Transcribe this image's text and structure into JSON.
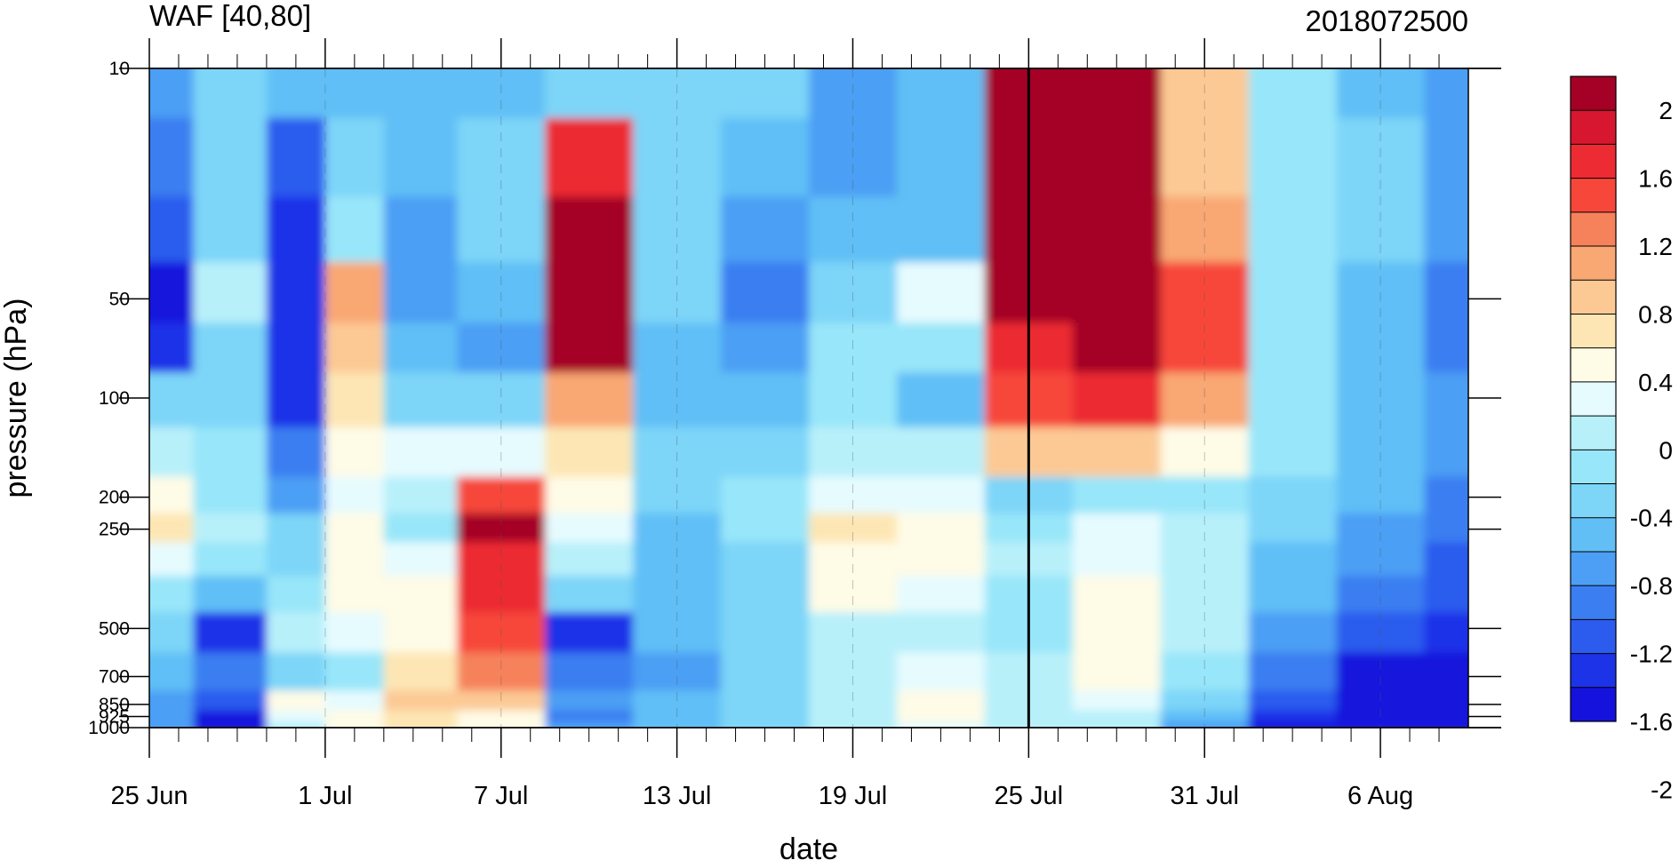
{
  "chart_data": {
    "type": "heatmap",
    "title_left": "WAF [40,80]",
    "title_right": "2018072500",
    "xlabel": "date",
    "ylabel": "pressure (hPa)",
    "x_tick_labels": [
      "25 Jun",
      "1 Jul",
      "7 Jul",
      "13 Jul",
      "19 Jul",
      "25 Jul",
      "31 Jul",
      "6 Aug"
    ],
    "x_range": [
      "2018-06-25",
      "2018-08-09"
    ],
    "analysis_date_marker": "2018-07-25",
    "y_axis": {
      "scale": "log",
      "inverted": true,
      "range": [
        10,
        1000
      ],
      "tick_values": [
        10,
        50,
        100,
        200,
        250,
        500,
        700,
        850,
        925,
        1000
      ]
    },
    "y_tick_labels": [
      "10",
      "50",
      "100",
      "200",
      "250",
      "500",
      "700",
      "850",
      "925",
      "1000"
    ],
    "colorbar": {
      "labels": [
        "2",
        "1.6",
        "1.2",
        "0.8",
        "0.4",
        "0",
        "-0.4",
        "-0.8",
        "-1.2",
        "-1.6",
        "-2"
      ],
      "colors": [
        "#a50026",
        "#d7172f",
        "#ec2b33",
        "#f7473a",
        "#f6825b",
        "#f9a773",
        "#fcc994",
        "#fde6b4",
        "#fefbe6",
        "#e6fbfe",
        "#b8f0fa",
        "#98e6f9",
        "#7dd5f8",
        "#61bff6",
        "#4c9ff4",
        "#3a7ef1",
        "#2c5cee",
        "#1d33e8",
        "#1612dd"
      ]
    },
    "values": {
      "dates": [
        "2018-06-25",
        "2018-06-28",
        "2018-06-30",
        "2018-07-02",
        "2018-07-04",
        "2018-07-07",
        "2018-07-10",
        "2018-07-13",
        "2018-07-16",
        "2018-07-19",
        "2018-07-22",
        "2018-07-25",
        "2018-07-28",
        "2018-07-31",
        "2018-08-03",
        "2018-08-06",
        "2018-08-09"
      ],
      "pressure_levels": [
        10,
        20,
        30,
        50,
        70,
        100,
        150,
        200,
        250,
        300,
        400,
        500,
        700,
        850,
        925,
        1000
      ],
      "waf": [
        [
          -0.6,
          -0.3,
          -0.4,
          -0.5,
          -0.5,
          -0.4,
          -0.3,
          -0.2,
          -0.3,
          -0.6,
          -0.4,
          2.6,
          2.6,
          1.0,
          0.0,
          -0.4,
          -0.6
        ],
        [
          -0.8,
          -0.3,
          -1.0,
          -0.3,
          -0.4,
          -0.3,
          1.8,
          -0.3,
          -0.5,
          -0.6,
          -0.4,
          2.6,
          2.6,
          1.0,
          0.0,
          -0.3,
          -0.6
        ],
        [
          -1.0,
          -0.2,
          -1.2,
          0.0,
          -0.6,
          -0.3,
          2.0,
          -0.3,
          -0.6,
          -0.5,
          -0.4,
          2.5,
          2.6,
          1.2,
          0.0,
          -0.3,
          -0.7
        ],
        [
          -1.4,
          0.1,
          -1.3,
          1.2,
          -0.7,
          -0.5,
          2.4,
          -0.3,
          -0.8,
          -0.3,
          0.4,
          2.0,
          2.6,
          1.5,
          0.0,
          -0.4,
          -0.8
        ],
        [
          -1.2,
          -0.3,
          -1.3,
          0.9,
          -0.5,
          -0.6,
          2.2,
          -0.4,
          -0.6,
          0.0,
          0.0,
          1.8,
          2.4,
          1.6,
          0.0,
          -0.5,
          -0.8
        ],
        [
          -0.3,
          -0.3,
          -1.3,
          0.7,
          -0.3,
          -0.3,
          1.2,
          -0.4,
          -0.4,
          0.0,
          -0.4,
          1.5,
          1.7,
          1.2,
          0.0,
          -0.4,
          -0.7
        ],
        [
          0.2,
          0.0,
          -0.8,
          0.6,
          0.3,
          0.4,
          0.8,
          -0.3,
          -0.2,
          0.2,
          0.2,
          1.0,
          1.0,
          0.6,
          0.0,
          -0.4,
          -0.7
        ],
        [
          0.6,
          0.0,
          -0.6,
          0.3,
          0.2,
          1.5,
          0.5,
          -0.3,
          -0.1,
          0.4,
          0.3,
          -0.2,
          -0.1,
          0.0,
          -0.2,
          -0.5,
          -0.8
        ],
        [
          0.7,
          0.2,
          -0.3,
          0.5,
          0.0,
          2.0,
          0.4,
          -0.4,
          0.0,
          0.7,
          0.5,
          -0.1,
          0.3,
          0.1,
          -0.3,
          -0.6,
          -0.9
        ],
        [
          0.4,
          0.0,
          -0.2,
          0.6,
          0.3,
          1.8,
          0.2,
          -0.5,
          -0.2,
          0.6,
          0.5,
          0.1,
          0.4,
          0.1,
          -0.4,
          -0.7,
          -1.0
        ],
        [
          0.0,
          -0.5,
          0.0,
          0.6,
          0.5,
          1.7,
          -0.3,
          -0.5,
          -0.3,
          0.6,
          0.3,
          0.0,
          0.6,
          0.1,
          -0.5,
          -0.9,
          -1.1
        ],
        [
          -0.2,
          -1.3,
          0.2,
          0.4,
          0.6,
          1.5,
          -1.2,
          -0.5,
          -0.3,
          0.2,
          0.2,
          0.0,
          0.6,
          0.1,
          -0.6,
          -1.0,
          -1.2
        ],
        [
          -0.4,
          -0.8,
          -0.2,
          0.0,
          0.8,
          1.4,
          -0.9,
          -0.6,
          -0.2,
          0.2,
          0.3,
          0.1,
          0.5,
          0.0,
          -0.8,
          -1.4,
          -1.5
        ],
        [
          -0.6,
          -1.0,
          0.5,
          0.4,
          0.9,
          1.0,
          -0.6,
          -0.5,
          -0.2,
          0.1,
          0.6,
          0.2,
          0.3,
          -0.2,
          -1.0,
          -1.6,
          -1.7
        ],
        [
          -0.6,
          -1.6,
          0.3,
          0.6,
          0.8,
          0.6,
          -0.8,
          -0.4,
          -0.2,
          0.1,
          0.5,
          0.2,
          0.2,
          -0.5,
          -1.3,
          -1.8,
          -1.9
        ],
        [
          -0.7,
          -1.8,
          0.1,
          0.5,
          0.7,
          0.5,
          -0.7,
          -0.4,
          -0.3,
          0.1,
          0.4,
          0.1,
          0.1,
          -0.6,
          -1.4,
          -2.0,
          -1.8
        ]
      ]
    }
  }
}
